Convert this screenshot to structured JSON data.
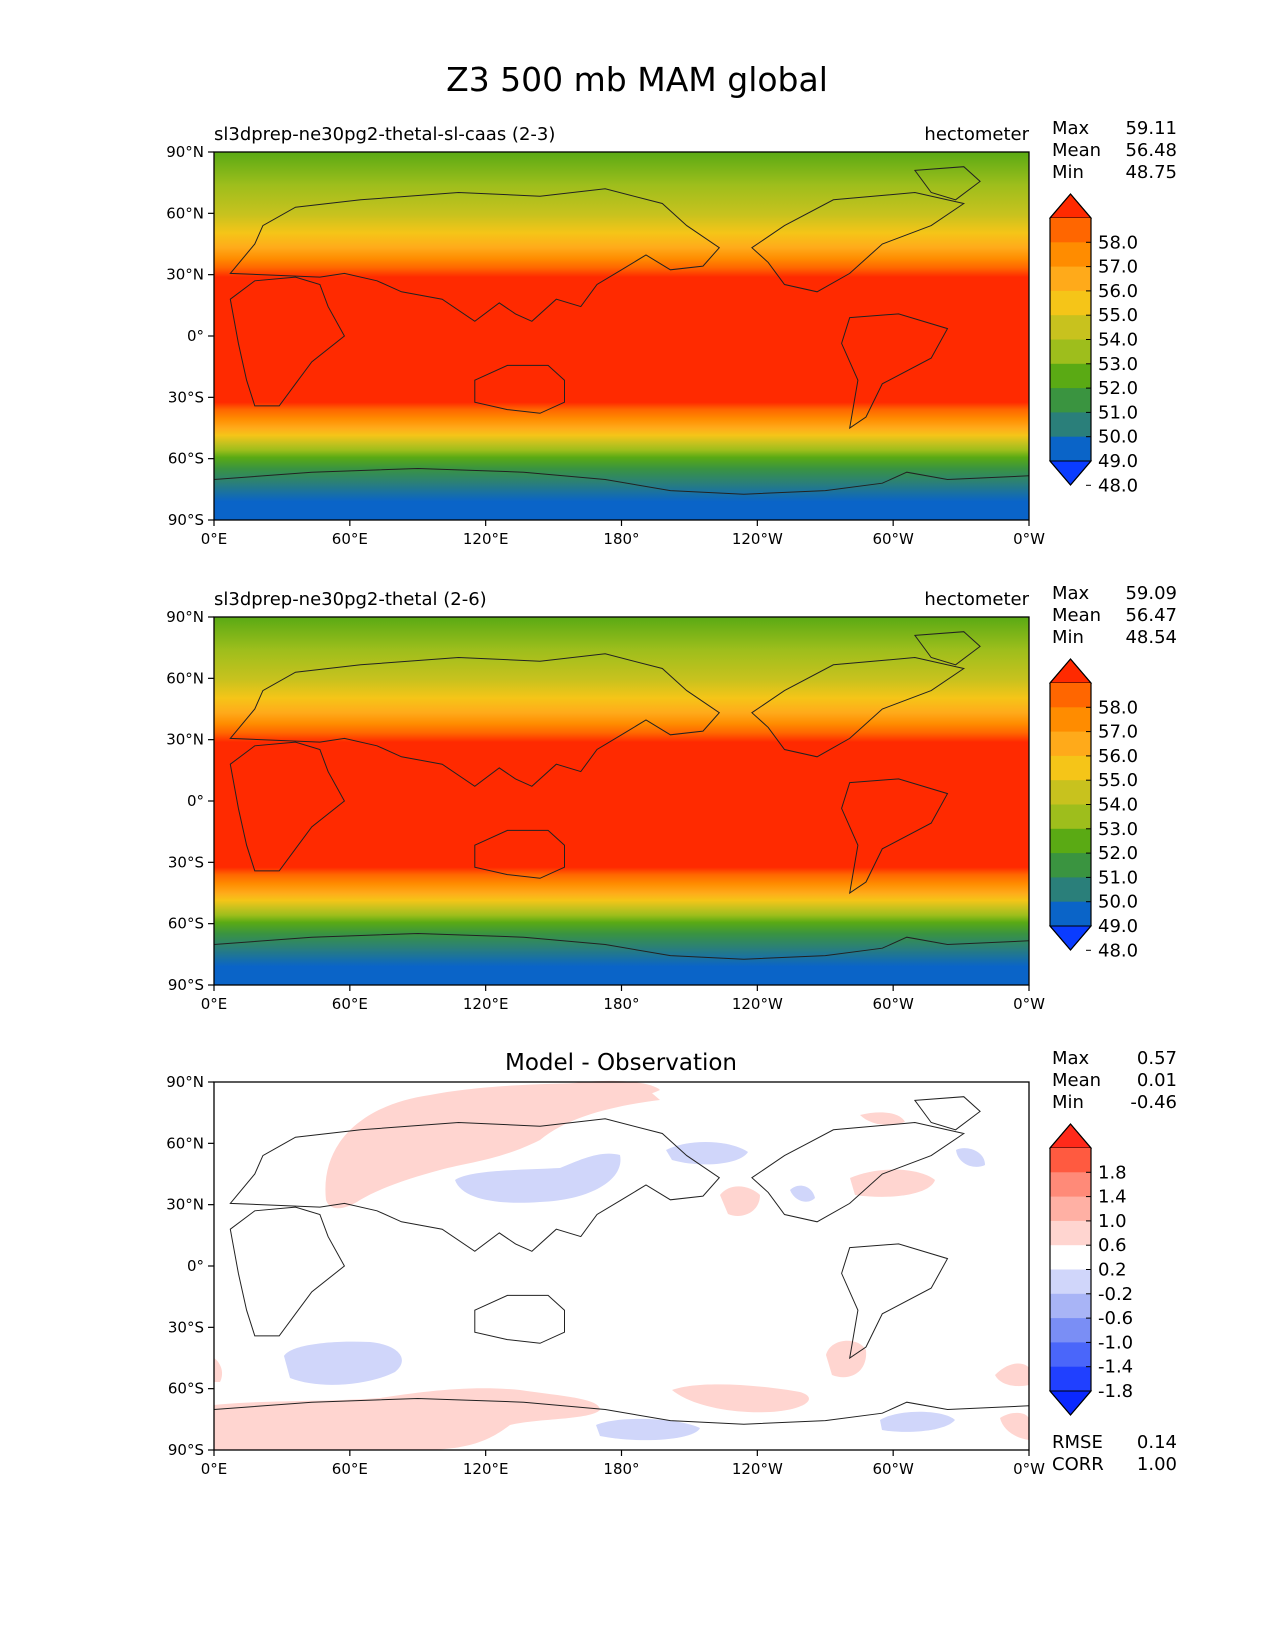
{
  "figure": {
    "title": "Z3 500 mb MAM global"
  },
  "panels": [
    {
      "left_title": "sl3dprep-ne30pg2-thetal-sl-caas (2-3)",
      "right_title": "hectometer",
      "stats": [
        {
          "label": "Max",
          "value": "59.11"
        },
        {
          "label": "Mean",
          "value": "56.48"
        },
        {
          "label": "Min",
          "value": "48.75"
        }
      ]
    },
    {
      "left_title": "sl3dprep-ne30pg2-thetal (2-6)",
      "right_title": "hectometer",
      "stats": [
        {
          "label": "Max",
          "value": "59.09"
        },
        {
          "label": "Mean",
          "value": "56.47"
        },
        {
          "label": "Min",
          "value": "48.54"
        }
      ]
    },
    {
      "center_title": "Model - Observation",
      "stats": [
        {
          "label": "Max",
          "value": "0.57"
        },
        {
          "label": "Mean",
          "value": "0.01"
        },
        {
          "label": "Min",
          "value": "-0.46"
        }
      ],
      "extra_stats": [
        {
          "label": "RMSE",
          "value": "0.14"
        },
        {
          "label": "CORR",
          "value": "1.00"
        }
      ]
    }
  ],
  "chart_data": [
    {
      "type": "heatmap",
      "title": "sl3dprep-ne30pg2-thetal-sl-caas (2-3)",
      "units": "hectometer",
      "x_ticks": [
        "0°E",
        "60°E",
        "120°E",
        "180°",
        "120°W",
        "60°W",
        "0°W"
      ],
      "y_ticks": [
        "90°N",
        "60°N",
        "30°N",
        "0°",
        "30°S",
        "60°S",
        "90°S"
      ],
      "xlim": [
        0,
        360
      ],
      "ylim": [
        -90,
        90
      ],
      "colorbar_levels": [
        58.0,
        57.0,
        56.0,
        55.0,
        54.0,
        53.0,
        52.0,
        51.0,
        50.0,
        49.0,
        48.0
      ],
      "colorbar_colors": [
        "#ff2a00",
        "#ff6600",
        "#ff8c00",
        "#ffaa1a",
        "#f5c518",
        "#c8c21e",
        "#9ebe1c",
        "#5aaa14",
        "#3a9440",
        "#2a7f7a",
        "#0a64c8",
        "#0a3cff"
      ],
      "zonal_mean_profile": {
        "lat": [
          90,
          75,
          60,
          45,
          30,
          15,
          0,
          -15,
          -30,
          -45,
          -60,
          -75,
          -90
        ],
        "value": [
          51.4,
          52.2,
          53.2,
          54.8,
          57.6,
          58.6,
          58.7,
          58.6,
          57.8,
          55.0,
          51.0,
          49.4,
          48.8
        ]
      },
      "stats": {
        "max": 59.11,
        "mean": 56.48,
        "min": 48.75
      }
    },
    {
      "type": "heatmap",
      "title": "sl3dprep-ne30pg2-thetal (2-6)",
      "units": "hectometer",
      "x_ticks": [
        "0°E",
        "60°E",
        "120°E",
        "180°",
        "120°W",
        "60°W",
        "0°W"
      ],
      "y_ticks": [
        "90°N",
        "60°N",
        "30°N",
        "0°",
        "30°S",
        "60°S",
        "90°S"
      ],
      "xlim": [
        0,
        360
      ],
      "ylim": [
        -90,
        90
      ],
      "colorbar_levels": [
        58.0,
        57.0,
        56.0,
        55.0,
        54.0,
        53.0,
        52.0,
        51.0,
        50.0,
        49.0,
        48.0
      ],
      "colorbar_colors": [
        "#ff2a00",
        "#ff6600",
        "#ff8c00",
        "#ffaa1a",
        "#f5c518",
        "#c8c21e",
        "#9ebe1c",
        "#5aaa14",
        "#3a9440",
        "#2a7f7a",
        "#0a64c8",
        "#0a3cff"
      ],
      "zonal_mean_profile": {
        "lat": [
          90,
          75,
          60,
          45,
          30,
          15,
          0,
          -15,
          -30,
          -45,
          -60,
          -75,
          -90
        ],
        "value": [
          51.2,
          52.0,
          53.2,
          54.8,
          57.6,
          58.6,
          58.7,
          58.6,
          57.8,
          55.0,
          51.0,
          49.3,
          48.6
        ]
      },
      "stats": {
        "max": 59.09,
        "mean": 56.47,
        "min": 48.54
      }
    },
    {
      "type": "heatmap",
      "title": "Model - Observation",
      "x_ticks": [
        "0°E",
        "60°E",
        "120°E",
        "180°",
        "120°W",
        "60°W",
        "0°W"
      ],
      "y_ticks": [
        "90°N",
        "60°N",
        "30°N",
        "0°",
        "30°S",
        "60°S",
        "90°S"
      ],
      "xlim": [
        0,
        360
      ],
      "ylim": [
        -90,
        90
      ],
      "colorbar_levels": [
        1.8,
        1.4,
        1.0,
        0.6,
        0.2,
        -0.2,
        -0.6,
        -1.0,
        -1.4,
        -1.8
      ],
      "colorbar_colors": [
        "#ff2a1a",
        "#ff5a40",
        "#ff8a78",
        "#ffb0a4",
        "#ffd5d0",
        "#ffffff",
        "#d0d6fa",
        "#a8b4f6",
        "#7a8ef5",
        "#4a66fa",
        "#2040ff",
        "#0a28ff"
      ],
      "anomalies": [
        {
          "lon": 70,
          "lat": 60,
          "sign": "positive"
        },
        {
          "lon": 100,
          "lat": 35,
          "sign": "negative"
        },
        {
          "lon": 150,
          "lat": 70,
          "sign": "positive"
        },
        {
          "lon": 210,
          "lat": 55,
          "sign": "negative"
        },
        {
          "lon": 240,
          "lat": 35,
          "sign": "positive"
        },
        {
          "lon": 290,
          "lat": 35,
          "sign": "positive"
        },
        {
          "lon": 55,
          "lat": -45,
          "sign": "negative"
        },
        {
          "lon": 280,
          "lat": -45,
          "sign": "positive"
        },
        {
          "lon": 90,
          "lat": -72,
          "sign": "positive"
        },
        {
          "lon": 190,
          "lat": -80,
          "sign": "negative"
        },
        {
          "lon": 300,
          "lat": -77,
          "sign": "negative"
        }
      ],
      "stats": {
        "max": 0.57,
        "mean": 0.01,
        "min": -0.46,
        "rmse": 0.14,
        "corr": 1.0
      }
    }
  ]
}
